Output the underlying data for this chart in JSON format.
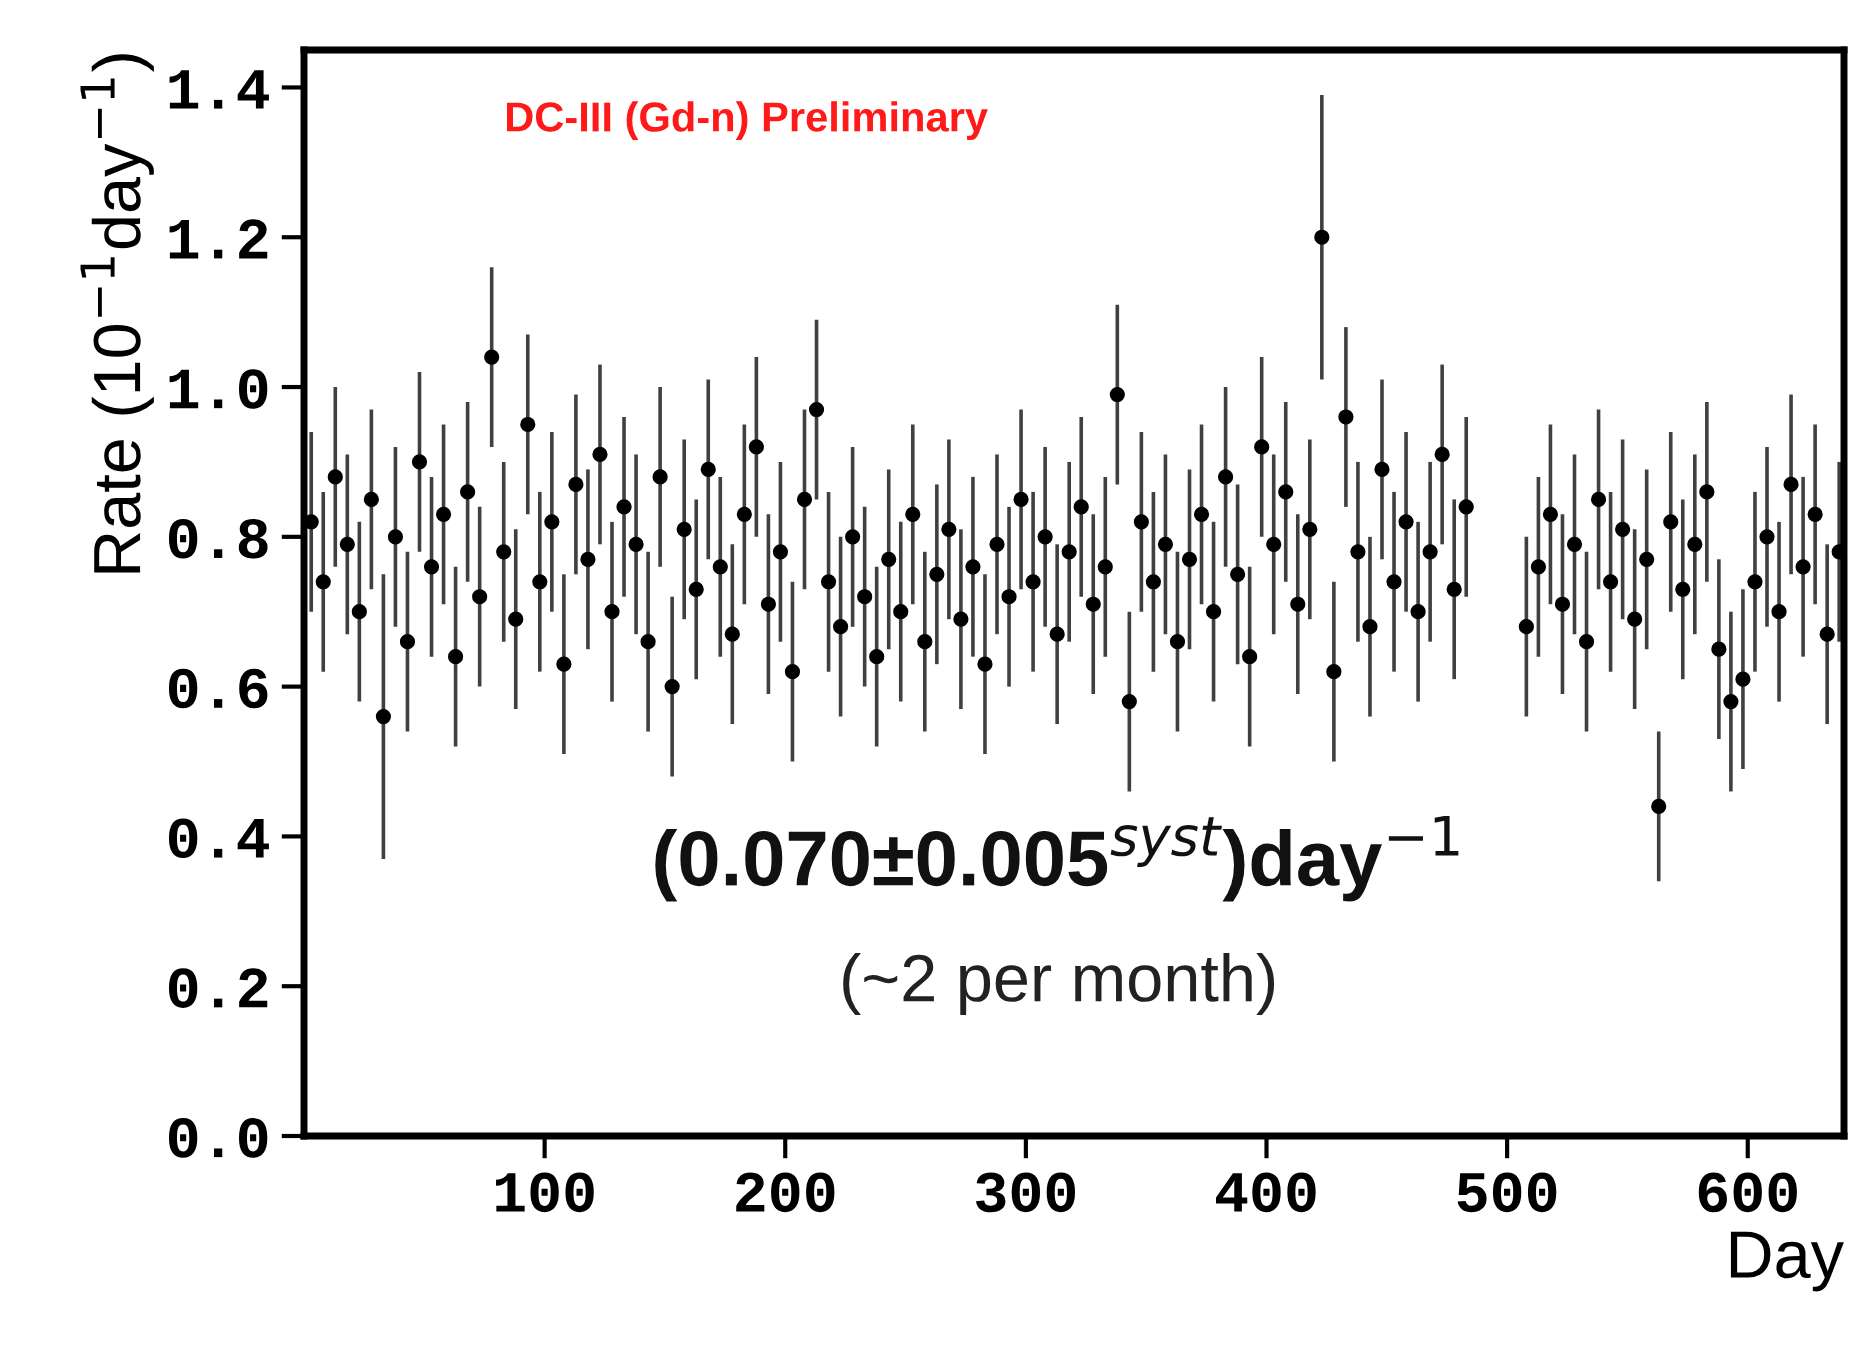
{
  "chart_data": {
    "type": "scatter",
    "xlabel": "Day",
    "ylabel": "Rate (10$^{−1}$day$^{−1}$)",
    "annotations": [
      "DC-III (Gd-n) Preliminary",
      "(0.070±0.005$^{syst}$)day$^{−1}$",
      "(~2 per month)"
    ],
    "x": [
      3,
      8,
      13,
      18,
      23,
      28,
      33,
      38,
      43,
      48,
      53,
      58,
      63,
      68,
      73,
      78,
      83,
      88,
      93,
      98,
      103,
      108,
      113,
      118,
      123,
      128,
      133,
      138,
      143,
      148,
      153,
      158,
      163,
      168,
      173,
      178,
      183,
      188,
      193,
      198,
      203,
      208,
      213,
      218,
      223,
      228,
      233,
      238,
      243,
      248,
      253,
      258,
      263,
      268,
      273,
      278,
      283,
      288,
      293,
      298,
      303,
      308,
      313,
      318,
      323,
      328,
      333,
      338,
      343,
      348,
      353,
      358,
      363,
      368,
      373,
      378,
      383,
      388,
      393,
      398,
      403,
      408,
      413,
      418,
      423,
      428,
      433,
      438,
      443,
      448,
      453,
      458,
      463,
      468,
      473,
      478,
      483,
      488,
      493,
      498,
      503,
      508,
      513,
      518,
      523,
      528,
      533,
      538,
      543,
      548,
      553,
      558,
      563,
      568,
      573,
      578,
      583,
      588,
      593,
      598,
      603,
      608,
      613,
      618,
      623,
      628,
      633,
      638
    ],
    "series": [
      {
        "color": "#000000",
        "values": [
          0.82,
          0.74,
          0.88,
          0.79,
          0.7,
          0.85,
          0.56,
          0.8,
          0.66,
          0.9,
          0.76,
          0.83,
          0.64,
          0.86,
          0.72,
          1.04,
          0.78,
          0.69,
          0.95,
          0.74,
          0.82,
          0.63,
          0.87,
          0.77,
          0.91,
          0.7,
          0.84,
          0.79,
          0.66,
          0.88,
          0.6,
          0.81,
          0.73,
          0.89,
          0.76,
          0.67,
          0.83,
          0.92,
          0.71,
          0.78,
          0.62,
          0.85,
          0.97,
          0.74,
          0.68,
          0.8,
          0.72,
          0.64,
          0.77,
          0.7,
          0.83,
          0.66,
          0.75,
          0.81,
          0.69,
          0.76,
          0.63,
          0.79,
          0.72,
          0.85,
          0.74,
          0.8,
          0.67,
          0.78,
          0.84,
          0.71,
          0.76,
          0.99,
          0.58,
          0.82,
          0.74,
          0.79,
          0.66,
          0.77,
          0.83,
          0.7,
          0.88,
          0.75,
          0.64,
          0.92,
          0.79,
          0.86,
          0.71,
          0.81,
          1.2,
          0.62,
          0.96,
          0.78,
          0.68,
          0.89,
          0.74,
          0.82,
          0.7,
          0.78,
          0.91,
          0.73,
          0.84,
          null,
          null,
          null,
          null,
          0.68,
          0.76,
          0.83,
          0.71,
          0.79,
          0.66,
          0.85,
          0.74,
          0.81,
          0.69,
          0.77,
          0.44,
          0.82,
          0.73,
          0.79,
          0.86,
          0.65,
          0.58,
          0.61,
          0.74,
          0.8,
          0.7,
          0.87,
          0.76,
          0.83,
          0.67,
          0.78
        ],
        "errors": [
          0.12,
          0.12,
          0.12,
          0.12,
          0.12,
          0.12,
          0.19,
          0.12,
          0.12,
          0.12,
          0.12,
          0.12,
          0.12,
          0.12,
          0.12,
          0.12,
          0.12,
          0.12,
          0.12,
          0.12,
          0.12,
          0.12,
          0.12,
          0.12,
          0.12,
          0.12,
          0.12,
          0.12,
          0.12,
          0.12,
          0.12,
          0.12,
          0.12,
          0.12,
          0.12,
          0.12,
          0.12,
          0.12,
          0.12,
          0.12,
          0.12,
          0.12,
          0.12,
          0.12,
          0.12,
          0.12,
          0.12,
          0.12,
          0.12,
          0.12,
          0.12,
          0.12,
          0.12,
          0.12,
          0.12,
          0.12,
          0.12,
          0.12,
          0.12,
          0.12,
          0.12,
          0.12,
          0.12,
          0.12,
          0.12,
          0.12,
          0.12,
          0.12,
          0.12,
          0.12,
          0.12,
          0.12,
          0.12,
          0.12,
          0.12,
          0.12,
          0.12,
          0.12,
          0.12,
          0.12,
          0.12,
          0.12,
          0.12,
          0.12,
          0.19,
          0.12,
          0.12,
          0.12,
          0.12,
          0.12,
          0.12,
          0.12,
          0.12,
          0.12,
          0.12,
          0.12,
          0.12,
          null,
          null,
          null,
          null,
          0.12,
          0.12,
          0.12,
          0.12,
          0.12,
          0.12,
          0.12,
          0.12,
          0.12,
          0.12,
          0.12,
          0.1,
          0.12,
          0.12,
          0.12,
          0.12,
          0.12,
          0.12,
          0.12,
          0.12,
          0.12,
          0.12,
          0.12,
          0.12,
          0.12,
          0.12,
          0.12
        ]
      }
    ],
    "marker": "circle",
    "grid": false,
    "legend": false,
    "xlim": [
      0,
      640
    ],
    "ylim": [
      0,
      1.45
    ],
    "xticks": [
      100,
      200,
      300,
      400,
      500,
      600
    ],
    "yticks": [
      {
        "value": 0,
        "label": "0.0"
      },
      {
        "value": 0.2,
        "label": "0.2"
      },
      {
        "value": 0.4,
        "label": "0.4"
      },
      {
        "value": 0.6,
        "label": "0.6"
      },
      {
        "value": 0.8,
        "label": "0.8"
      },
      {
        "value": 1.0,
        "label": "1.0"
      },
      {
        "value": 1.2,
        "label": "1.2"
      },
      {
        "value": 1.4,
        "label": "1.4"
      }
    ]
  }
}
